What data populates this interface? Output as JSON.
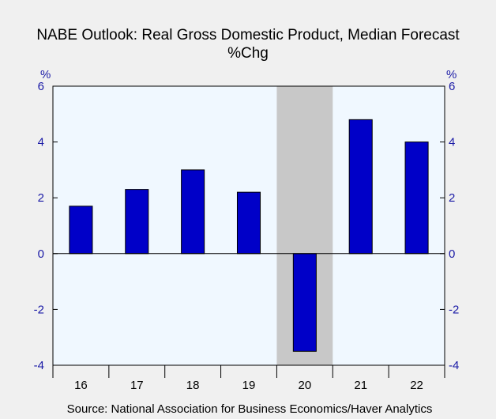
{
  "chart_data": {
    "type": "bar",
    "title": "NABE Outlook: Real Gross Domestic Product, Median Forecast",
    "subtitle": "%Chg",
    "y_unit_left": "%",
    "y_unit_right": "%",
    "categories": [
      "16",
      "17",
      "18",
      "19",
      "20",
      "21",
      "22"
    ],
    "values": [
      1.7,
      2.3,
      3.0,
      2.2,
      -3.5,
      4.8,
      4.0
    ],
    "ylim": [
      -4,
      6
    ],
    "yticks": [
      -4,
      -2,
      0,
      2,
      4,
      6
    ],
    "ytick_labels": [
      "-4",
      "-2",
      "0",
      "2",
      "4",
      "6"
    ],
    "shaded_category": "20",
    "grid": false,
    "source": "Source:  National Association for Business Economics/Haver Analytics"
  },
  "colors": {
    "bar": "#0000c8",
    "plot_bg": "#f0f8ff",
    "shade": "#c8c8c8",
    "page_bg": "#f0f0f0",
    "axis_text": "#1a1aa6"
  }
}
